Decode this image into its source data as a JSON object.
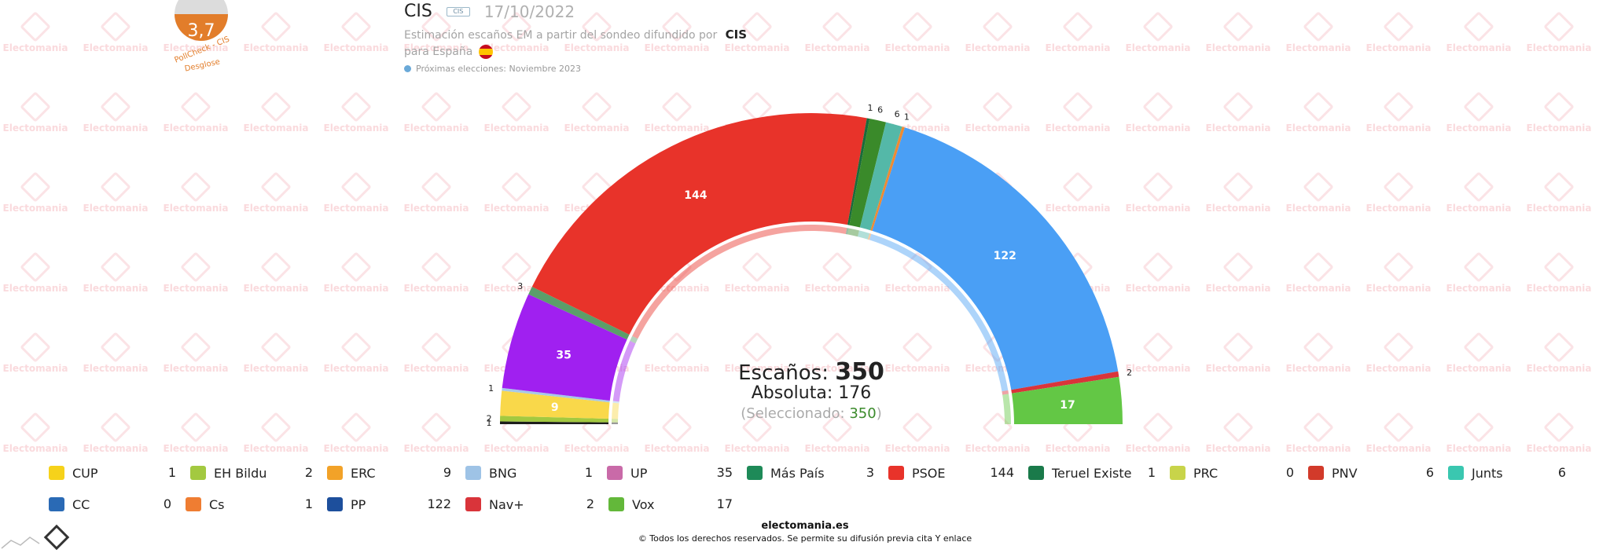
{
  "watermark_text": "Electomania",
  "badge": {
    "value": "3,7",
    "caption_line1": "PollCheck - CIS",
    "caption_line2": "Desglose",
    "color": "#e27d2a"
  },
  "header": {
    "poll_name": "CIS",
    "poll_logo_text": "CIS",
    "date": "17/10/2022",
    "subtitle": "Estimación escaños EM a partir del sondeo difundido por",
    "subtitle_source": "CIS",
    "region": "para España",
    "next_elections": "Próximas elecciones: Noviembre 2023"
  },
  "center": {
    "seats_label": "Escaños:",
    "seats_total": "350",
    "majority_label": "Absoluta:",
    "majority_value": "176",
    "selected_label": "(Seleccionado:",
    "selected_value": "350",
    "selected_close": ")"
  },
  "chart_data": {
    "type": "hemicycle",
    "total_seats": 350,
    "majority": 176,
    "parties": [
      {
        "name": "CUP",
        "seats": 1,
        "color": "#1d1d1b"
      },
      {
        "name": "EH Bildu",
        "seats": 2,
        "color": "#a3c940"
      },
      {
        "name": "ERC",
        "seats": 9,
        "color": "#f9d84a"
      },
      {
        "name": "BNG",
        "seats": 1,
        "color": "#a6c8e8"
      },
      {
        "name": "UP",
        "seats": 35,
        "color": "#a020f0"
      },
      {
        "name": "Más País",
        "seats": 3,
        "color": "#5b9e6a"
      },
      {
        "name": "PSOE",
        "seats": 144,
        "color": "#e8332a"
      },
      {
        "name": "Teruel Existe",
        "seats": 1,
        "color": "#1a6b3a"
      },
      {
        "name": "PRC",
        "seats": 0,
        "color": "#c8d44a"
      },
      {
        "name": "PNV",
        "seats": 6,
        "color": "#3a8a2a"
      },
      {
        "name": "Junts",
        "seats": 6,
        "color": "#54b8a8"
      },
      {
        "name": "CC",
        "seats": 0,
        "color": "#f6d238"
      },
      {
        "name": "Cs",
        "seats": 1,
        "color": "#ef8a32"
      },
      {
        "name": "PP",
        "seats": 122,
        "color": "#4a9ff5"
      },
      {
        "name": "Nav+",
        "seats": 2,
        "color": "#d9343a"
      },
      {
        "name": "Vox",
        "seats": 17,
        "color": "#63c745"
      }
    ]
  },
  "legend": [
    {
      "name": "CUP",
      "seats": "1",
      "icon_color": "#f6d21a",
      "icon_name": "cup-logo-icon"
    },
    {
      "name": "EH Bildu",
      "seats": "2",
      "icon_color": "#a3c940",
      "icon_name": "bildu-logo-icon"
    },
    {
      "name": "ERC",
      "seats": "9",
      "icon_color": "#f2a228",
      "icon_name": "erc-logo-icon"
    },
    {
      "name": "BNG",
      "seats": "1",
      "icon_color": "#9ec3e6",
      "icon_name": "bng-logo-icon"
    },
    {
      "name": "UP",
      "seats": "35",
      "icon_color": "#c96aa8",
      "icon_name": "up-logo-icon"
    },
    {
      "name": "Más País",
      "seats": "3",
      "icon_color": "#1e8a58",
      "icon_name": "mas-pais-logo-icon"
    },
    {
      "name": "PSOE",
      "seats": "144",
      "icon_color": "#e8332a",
      "icon_name": "psoe-logo-icon"
    },
    {
      "name": "Teruel Existe",
      "seats": "1",
      "icon_color": "#1a7a4a",
      "icon_name": "teruel-existe-logo-icon"
    },
    {
      "name": "PRC",
      "seats": "0",
      "icon_color": "#c8d44a",
      "icon_name": "prc-logo-icon"
    },
    {
      "name": "PNV",
      "seats": "6",
      "icon_color": "#d23a2a",
      "icon_name": "pnv-logo-icon"
    },
    {
      "name": "Junts",
      "seats": "6",
      "icon_color": "#3ac7b0",
      "icon_name": "junts-logo-icon"
    },
    {
      "name": "CC",
      "seats": "0",
      "icon_color": "#2a6ab5",
      "icon_name": "cc-logo-icon"
    },
    {
      "name": "Cs",
      "seats": "1",
      "icon_color": "#ef7d32",
      "icon_name": "cs-logo-icon"
    },
    {
      "name": "PP",
      "seats": "122",
      "icon_color": "#1d4f9c",
      "icon_name": "pp-logo-icon"
    },
    {
      "name": "Nav+",
      "seats": "2",
      "icon_color": "#d9343a",
      "icon_name": "nav-plus-logo-icon"
    },
    {
      "name": "Vox",
      "seats": "17",
      "icon_color": "#63b83a",
      "icon_name": "vox-logo-icon"
    }
  ],
  "footer": {
    "site": "electomania.es",
    "copyright": "© Todos los derechos reservados. Se permite su difusión previa cita Y enlace"
  }
}
